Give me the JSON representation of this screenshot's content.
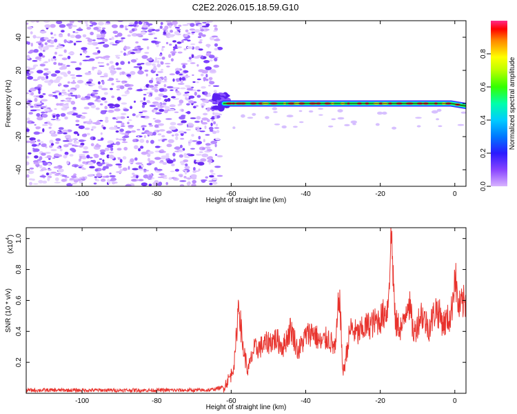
{
  "title": "C2E2.2026.015.18.59.G10",
  "colors": {
    "snr_line": "#e8332d",
    "spectral_scale": [
      "#cc99ff",
      "#a066ff",
      "#6633ff",
      "#2222ff",
      "#00aaff",
      "#00ffaa",
      "#44ff00",
      "#ffff00",
      "#ff8800",
      "#ff0000",
      "#ff3399"
    ]
  },
  "chart_data": [
    {
      "type": "heatmap",
      "name": "spectrogram",
      "xlabel": "Height of straight line (km)",
      "ylabel": "Frequency (Hz)",
      "xlim": [
        -115,
        3
      ],
      "ylim": [
        -50,
        50
      ],
      "xticks": [
        -100,
        -80,
        -60,
        -40,
        -20,
        0
      ],
      "yticks": [
        -40,
        -20,
        0,
        20,
        40
      ],
      "noise_region_end_km": -63,
      "signal_start_km": -62,
      "signal_frequency_hz": 0,
      "drift_end_frequency_hz": -1.5,
      "colorbar": {
        "label": "Normalized spectral amplitude",
        "range": [
          0,
          1
        ],
        "ticks": [
          0.0,
          0.2,
          0.4,
          0.6,
          0.8
        ]
      }
    },
    {
      "type": "line",
      "name": "snr",
      "xlabel": "Height of straight line (km)",
      "ylabel": "SNR (10 * v/v)",
      "multiplier": "(x10",
      "multiplier_exp": "4",
      "xlim": [
        -115,
        3
      ],
      "ylim": [
        0,
        1.07
      ],
      "xticks": [
        -100,
        -80,
        -60,
        -40,
        -20,
        0
      ],
      "yticks": [
        0.2,
        0.4,
        0.6,
        0.8,
        1.0
      ],
      "series": [
        {
          "name": "SNR",
          "x": [
            -115,
            -100,
            -85,
            -66,
            -62,
            -60,
            -59,
            -58,
            -57,
            -55.5,
            -54,
            -52,
            -50,
            -48,
            -46,
            -44,
            -42,
            -40,
            -38,
            -36,
            -34,
            -32,
            -31,
            -30,
            -28,
            -26,
            -24,
            -22,
            -20,
            -18,
            -17,
            -16,
            -14,
            -12.5,
            -11,
            -9,
            -7,
            -5,
            -3,
            -1,
            0,
            1,
            3
          ],
          "y": [
            0.02,
            0.02,
            0.02,
            0.02,
            0.04,
            0.12,
            0.22,
            0.6,
            0.32,
            0.14,
            0.28,
            0.3,
            0.33,
            0.35,
            0.3,
            0.42,
            0.27,
            0.37,
            0.4,
            0.32,
            0.36,
            0.28,
            0.66,
            0.12,
            0.42,
            0.38,
            0.43,
            0.45,
            0.48,
            0.55,
            1.05,
            0.45,
            0.42,
            0.62,
            0.38,
            0.52,
            0.42,
            0.55,
            0.45,
            0.5,
            0.78,
            0.55,
            0.6
          ]
        }
      ]
    }
  ]
}
